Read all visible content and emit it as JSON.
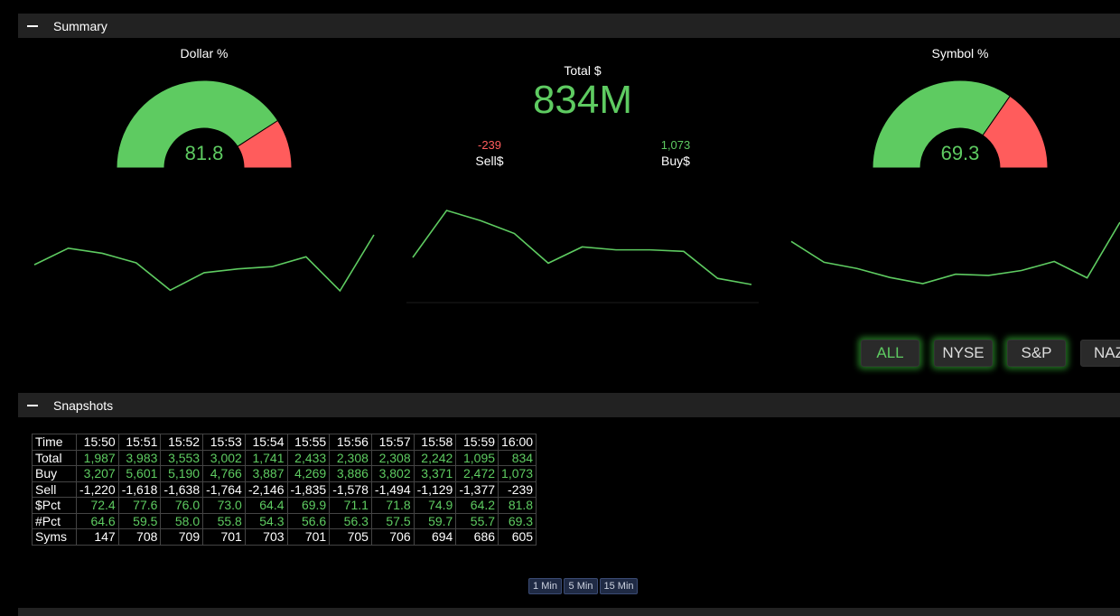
{
  "summary": {
    "title": "Summary",
    "dollar_gauge": {
      "title": "Dollar %",
      "value": "81.8",
      "pct": 81.8
    },
    "symbol_gauge": {
      "title": "Symbol %",
      "value": "69.3",
      "pct": 69.3
    },
    "total": {
      "label": "Total $",
      "value": "834M"
    },
    "sell": {
      "label": "Sell$",
      "value": "-239"
    },
    "buy": {
      "label": "Buy$",
      "value": "1,073"
    },
    "sparklines": {
      "left": [
        72.4,
        77.6,
        76.0,
        73.0,
        64.4,
        69.9,
        71.1,
        71.8,
        74.9,
        64.2,
        81.8
      ],
      "middle": [
        1987,
        3983,
        3553,
        3002,
        1741,
        2433,
        2308,
        2308,
        2242,
        1095,
        834
      ],
      "right": [
        64.6,
        59.5,
        58.0,
        55.8,
        54.3,
        56.6,
        56.3,
        57.5,
        59.7,
        55.7,
        69.3
      ]
    },
    "filters": [
      "ALL",
      "NYSE",
      "S&P",
      "NAZ"
    ]
  },
  "snapshots": {
    "title": "Snapshots",
    "times": [
      "15:50",
      "15:51",
      "15:52",
      "15:53",
      "15:54",
      "15:55",
      "15:56",
      "15:57",
      "15:58",
      "15:59",
      "16:00"
    ],
    "rows": [
      {
        "label": "Total",
        "color": "green",
        "values": [
          "1,987",
          "3,983",
          "3,553",
          "3,002",
          "1,741",
          "2,433",
          "2,308",
          "2,308",
          "2,242",
          "1,095",
          "834"
        ]
      },
      {
        "label": "Buy",
        "color": "green",
        "values": [
          "3,207",
          "5,601",
          "5,190",
          "4,766",
          "3,887",
          "4,269",
          "3,886",
          "3,802",
          "3,371",
          "2,472",
          "1,073"
        ]
      },
      {
        "label": "Sell",
        "color": "white",
        "values": [
          "-1,220",
          "-1,618",
          "-1,638",
          "-1,764",
          "-2,146",
          "-1,835",
          "-1,578",
          "-1,494",
          "-1,129",
          "-1,377",
          "-239"
        ]
      },
      {
        "label": "$Pct",
        "color": "green",
        "values": [
          "72.4",
          "77.6",
          "76.0",
          "73.0",
          "64.4",
          "69.9",
          "71.1",
          "71.8",
          "74.9",
          "64.2",
          "81.8"
        ]
      },
      {
        "label": "#Pct",
        "color": "green",
        "values": [
          "64.6",
          "59.5",
          "58.0",
          "55.8",
          "54.3",
          "56.6",
          "56.3",
          "57.5",
          "59.7",
          "55.7",
          "69.3"
        ]
      },
      {
        "label": "Syms",
        "color": "white",
        "values": [
          "147",
          "708",
          "709",
          "701",
          "703",
          "701",
          "705",
          "706",
          "694",
          "686",
          "605"
        ]
      }
    ],
    "time_label": "Time",
    "intervals": [
      "1 Min",
      "5 Min",
      "15 Min"
    ]
  },
  "colors": {
    "green": "#5ecb61",
    "red": "#ff5c5c",
    "bar": "#222222"
  }
}
